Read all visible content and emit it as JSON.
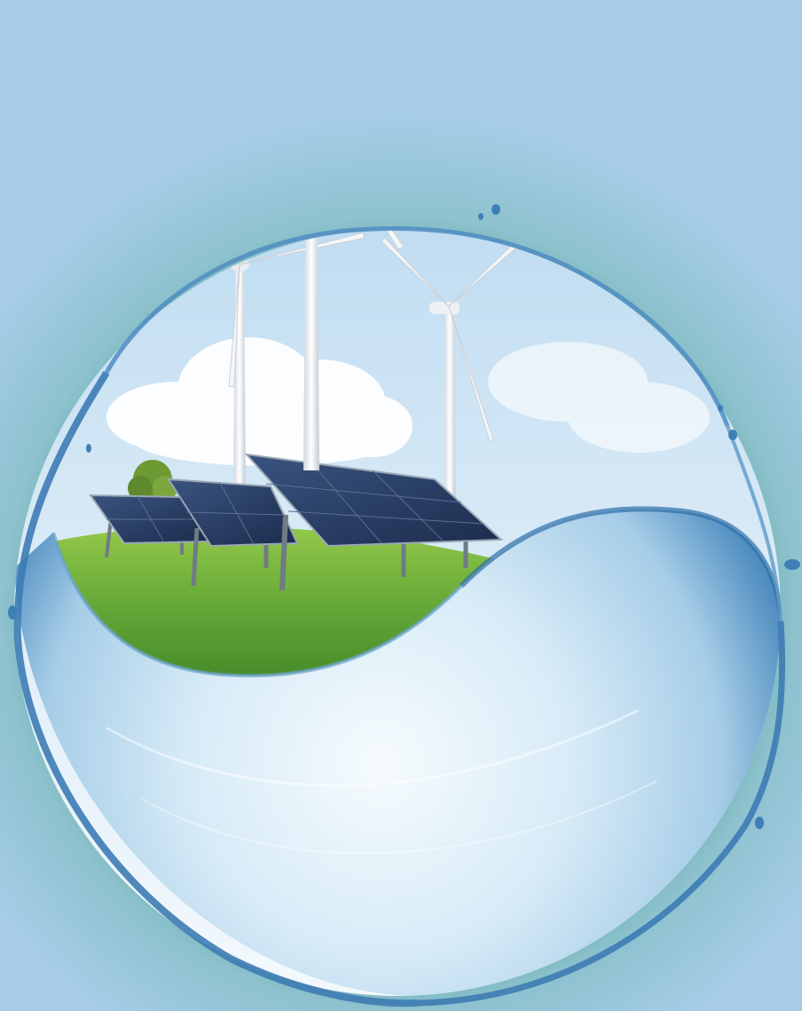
{
  "colors": {
    "background_sky": "#a6cce6",
    "background_glow": "#3f9c7e",
    "inner_sky_top": "#cfe6f6",
    "inner_sky_bottom": "#eef6fb",
    "cloud": "#ffffff",
    "grass_light": "#8cc63f",
    "grass_dark": "#3f8a2a",
    "water_light": "#e7f3fb",
    "water_mid": "#a9cfe8",
    "water_dark": "#2f6fa8",
    "turbine": "#f2f4f6",
    "solar_panel": "#23375e",
    "solar_frame": "#9aa7b5"
  },
  "icons": {
    "wind_turbine": "wind-turbine-icon",
    "solar_panel": "solar-panel-icon",
    "water_drop": "water-drop-icon",
    "cloud": "cloud-icon",
    "tree": "tree-icon"
  }
}
